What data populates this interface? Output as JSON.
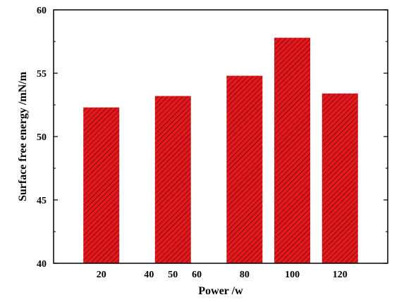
{
  "chart_data": {
    "type": "bar",
    "title": "",
    "xlabel": "Power /w",
    "ylabel": "Surface free energy /mN/m",
    "ylim": [
      40,
      60
    ],
    "x_range": [
      0,
      140
    ],
    "x_ticks": [
      20,
      40,
      50,
      60,
      80,
      100,
      120
    ],
    "y_ticks": [
      40,
      45,
      50,
      55,
      60
    ],
    "bars": [
      {
        "x": 20,
        "value": 52.3
      },
      {
        "x": 50,
        "value": 53.2
      },
      {
        "x": 80,
        "value": 54.8
      },
      {
        "x": 100,
        "value": 57.8
      },
      {
        "x": 120,
        "value": 53.4
      }
    ],
    "bar_color": "#e3171c",
    "hatch_color": "#3a0a0a",
    "grid": false,
    "legend": false
  }
}
